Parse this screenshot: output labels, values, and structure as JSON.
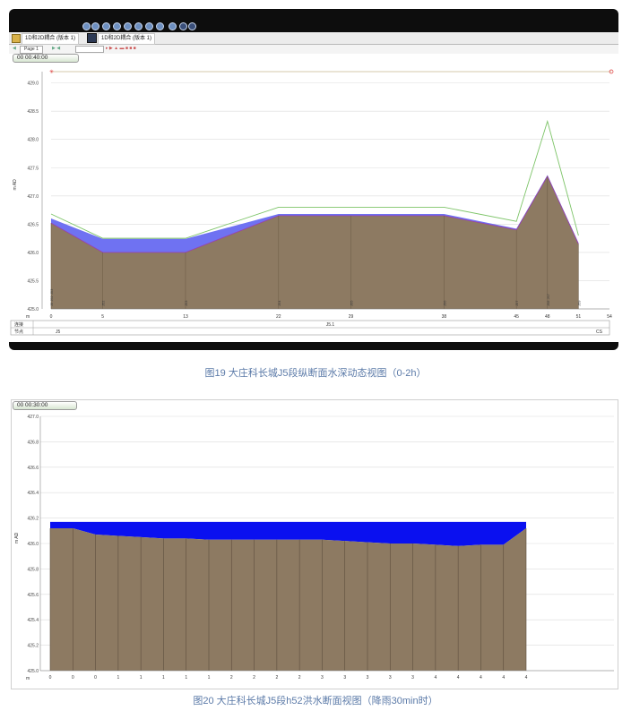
{
  "toolbar": {
    "tab1_label": "1D和2D耦合 (版本 1)",
    "tab2_label": "1D和2D耦合 (版本 1)",
    "page_label": "Page 1"
  },
  "figure1": {
    "time_label": "00 00:40:00",
    "caption": "图19 大庄科长城J5段纵断面水深动态视图（0-2h）",
    "chart_data": {
      "type": "area",
      "ylabel": "m AD",
      "xlabel": "m",
      "ylim": [
        425.0,
        429.2
      ],
      "xlim": [
        0,
        54
      ],
      "yticks": [
        "429.0",
        "428.5",
        "428.0",
        "427.5",
        "427.0",
        "426.5",
        "426.0",
        "425.5",
        "425.0"
      ],
      "xticks": [
        "0",
        "5",
        "13",
        "22",
        "29",
        "38",
        "45",
        "48",
        "51",
        "54"
      ],
      "x": [
        0,
        5,
        13,
        22,
        29,
        38,
        45,
        48,
        51
      ],
      "bed": [
        426.52,
        426.0,
        426.0,
        426.65,
        426.65,
        426.65,
        426.4,
        427.35,
        426.15
      ],
      "water": [
        426.6,
        426.24,
        426.24,
        426.68,
        426.68,
        426.68,
        426.42,
        427.37,
        426.17
      ],
      "max_level": [
        426.68,
        426.25,
        426.25,
        426.8,
        426.8,
        426.8,
        426.55,
        428.32,
        426.3
      ],
      "top_line": 429.2,
      "node_labels": [
        "J5 J52 J53",
        "J52",
        "J53",
        "J54",
        "J55",
        "J56",
        "J57",
        "J58 J57",
        "J59"
      ],
      "footer_row1_label": "连接",
      "footer_row1_value": "J5.1",
      "footer_row2_label": "节点",
      "footer_row2_left": "J5",
      "footer_row2_right": "CS",
      "colors": {
        "bed": "#8d7a62",
        "water": "#6f72f2",
        "max": "#7dc468",
        "grid": "#dcdcdc"
      }
    }
  },
  "figure2": {
    "time_label": "00 00:30:00",
    "caption": "图20 大庄科长城J5段h52洪水断面视图（降雨30min时）",
    "chart_data": {
      "type": "area",
      "ylabel": "m AD",
      "xlabel": "m",
      "ylim": [
        425.0,
        427.0
      ],
      "yticks": [
        "427.0",
        "426.8",
        "426.6",
        "426.4",
        "426.2",
        "426.0",
        "425.8",
        "425.6",
        "425.4",
        "425.2",
        "425.0"
      ],
      "xticks": [
        "0",
        "0",
        "0",
        "1",
        "1",
        "1",
        "1",
        "1",
        "2",
        "2",
        "2",
        "2",
        "3",
        "3",
        "3",
        "3",
        "3",
        "4",
        "4",
        "4",
        "4",
        "4"
      ],
      "bed": [
        426.12,
        426.12,
        426.07,
        426.06,
        426.05,
        426.04,
        426.04,
        426.03,
        426.03,
        426.03,
        426.03,
        426.03,
        426.03,
        426.02,
        426.01,
        426.0,
        426.0,
        425.99,
        425.98,
        425.99,
        425.99,
        426.12
      ],
      "water_level": 426.17,
      "colors": {
        "bed": "#8d7a62",
        "water": "#0a10f0",
        "grid": "#dcdcdc"
      }
    }
  }
}
